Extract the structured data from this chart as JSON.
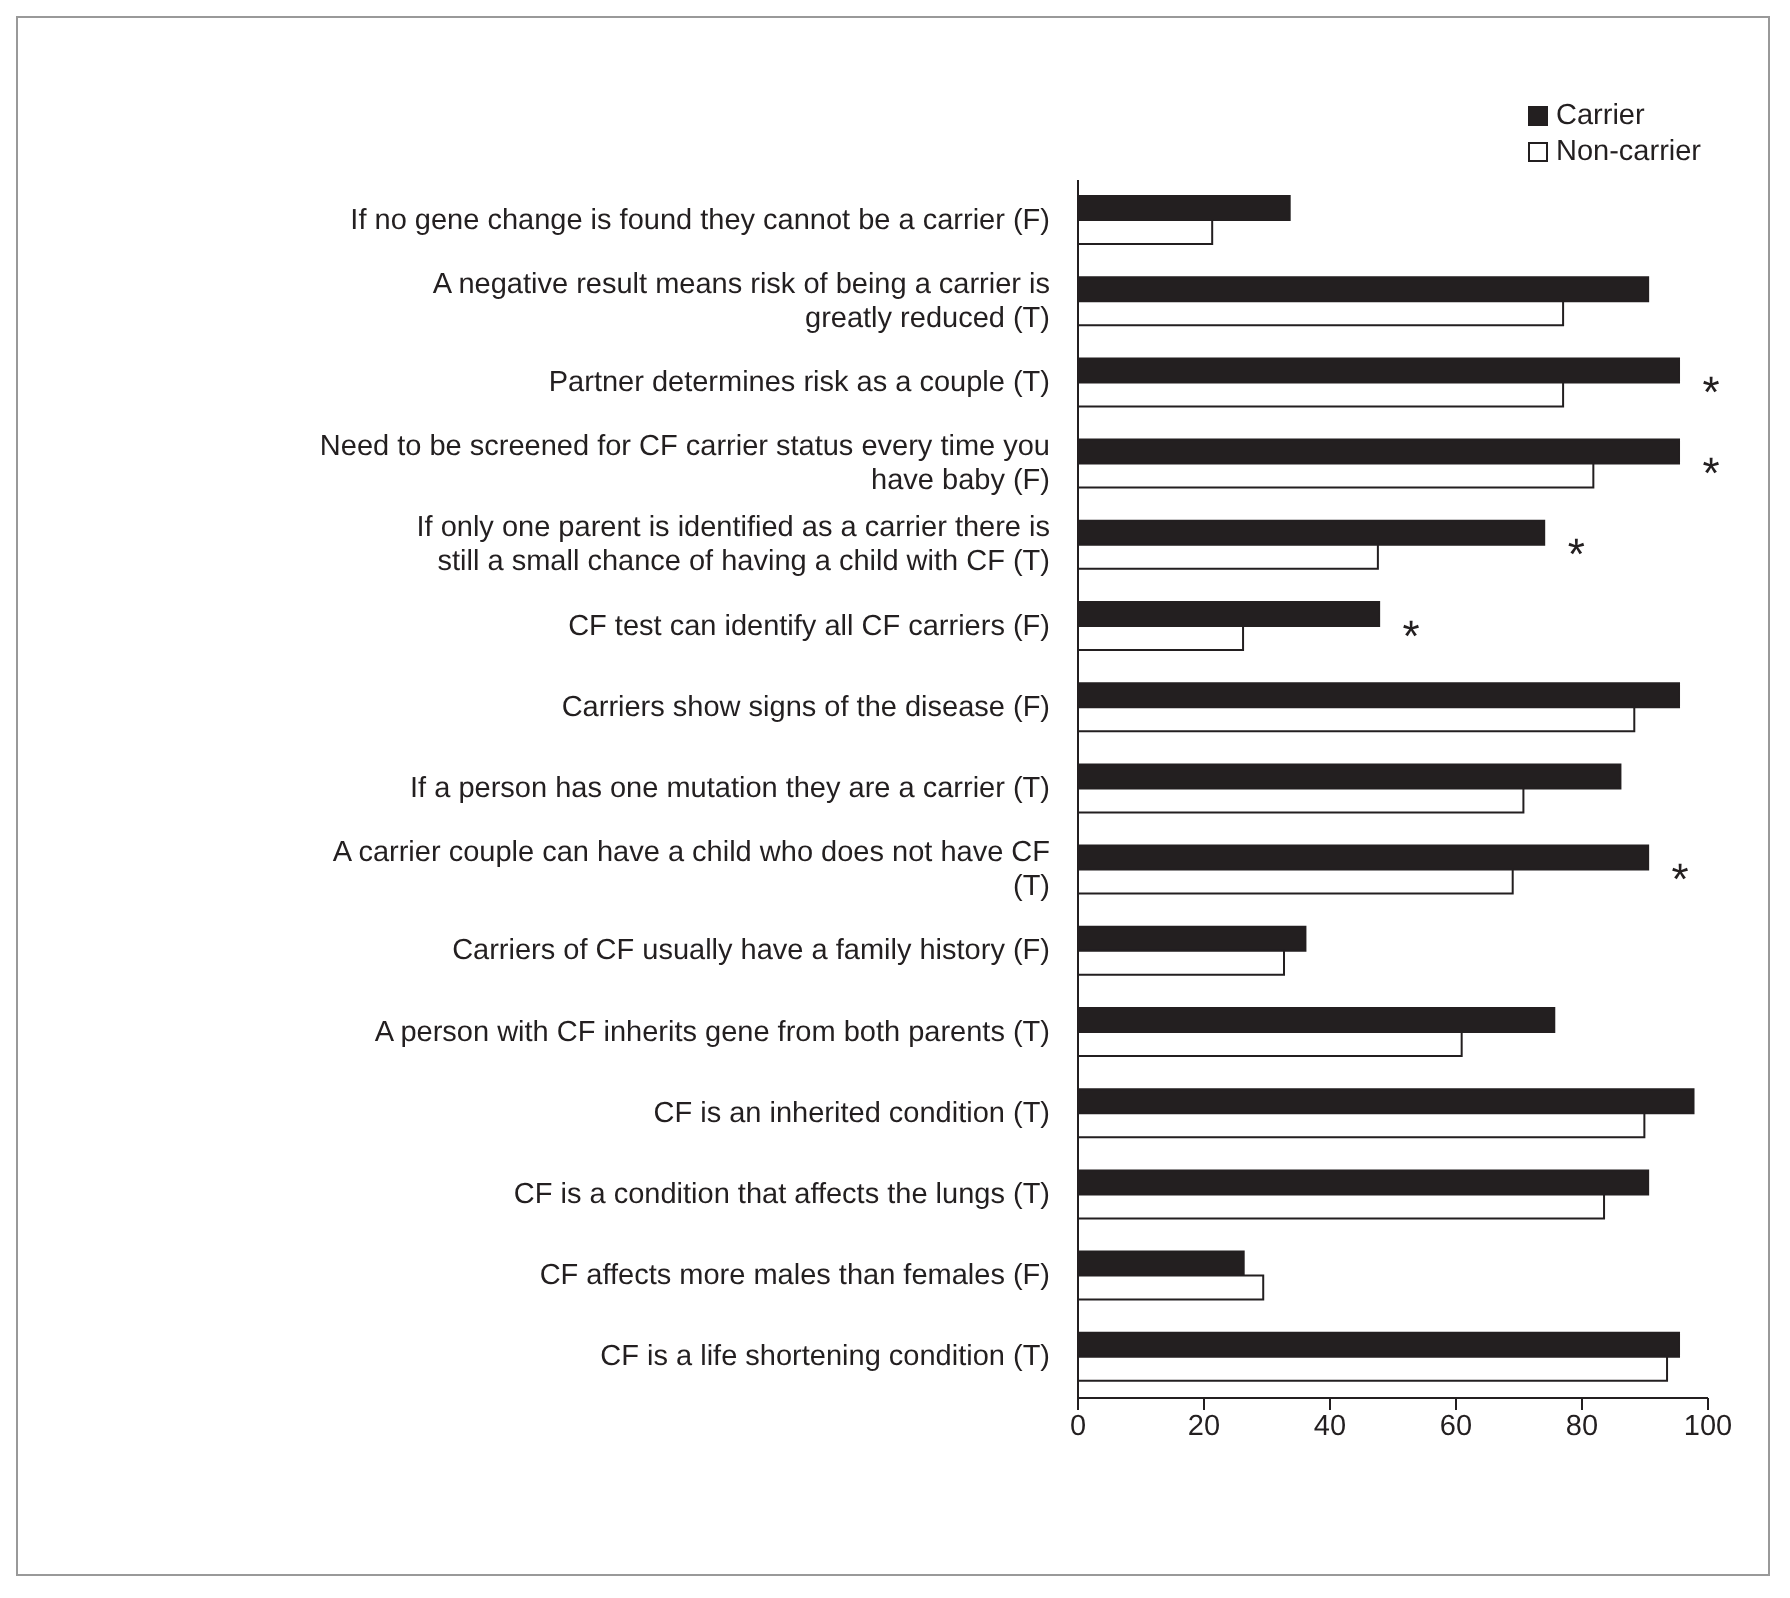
{
  "chart_data": {
    "type": "bar",
    "orientation": "horizontal",
    "categories": [
      "If no gene change is found they cannot be a carrier (F)",
      "A negative result means risk of being a carrier is greatly reduced (T)",
      "Partner determines risk as a couple (T)",
      "Need to be screened for CF carrier status every time you have baby (F)",
      "If only one parent is identified as a carrier there is still a small chance of having a child with CF (T)",
      "CF test can identify all CF carriers (F)",
      "Carriers show signs of the disease (F)",
      "If a person has one mutation they are a carrier (T)",
      "A carrier couple can have a child who does not have CF (T)",
      "Carriers of CF usually have a family history (F)",
      "A person with CF inherits gene from both parents (T)",
      "CF is an inherited condition (T)",
      "CF is a condition that affects the lungs (T)",
      "CF affects more males than females (F)",
      "CF is a life shortening condition (T)"
    ],
    "series": [
      {
        "name": "Carrier",
        "color": "#231f20",
        "values": [
          33.6,
          90.5,
          95.4,
          95.4,
          74,
          47.8,
          95.4,
          86.1,
          90.5,
          36.1,
          75.6,
          97.7,
          90.5,
          26.3,
          95.4
        ]
      },
      {
        "name": "Non-carrier",
        "color": "#ffffff",
        "values": [
          21.3,
          77,
          77,
          81.8,
          47.6,
          26.2,
          88.3,
          70.7,
          69,
          32.7,
          60.9,
          89.9,
          83.5,
          29.4,
          93.5
        ]
      }
    ],
    "xlim": [
      0,
      100
    ],
    "xticks": [
      0,
      20,
      40,
      60,
      80,
      100
    ],
    "grid": false,
    "legend": "top right",
    "annotations": [
      {
        "text": "*",
        "x": 95.4,
        "y": "Partner determines risk as a couple (T)"
      },
      {
        "text": "*",
        "x": 95.4,
        "y": "Need to be screened for CF carrier status every time you have baby (F)"
      },
      {
        "text": "*",
        "x": 74,
        "y": "If only one parent is identified as a carrier there is still a small chance of having a child with CF (T)"
      },
      {
        "text": "*",
        "x": 47.8,
        "y": "CF test can identify all CF carriers (F)"
      },
      {
        "text": "*",
        "x": 90.5,
        "y": "A carrier couple can have a child who does not have CF (T)"
      }
    ]
  }
}
